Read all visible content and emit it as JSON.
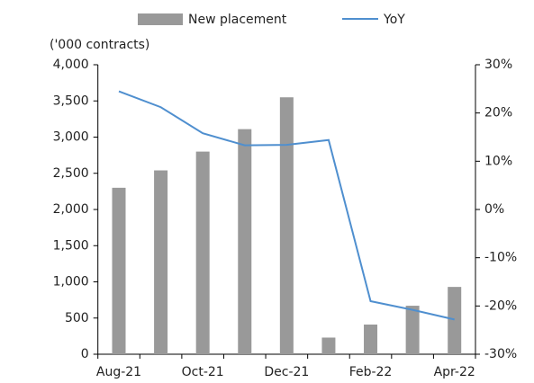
{
  "chart_data": {
    "type": "bar_line",
    "y_label": "('000 contracts)",
    "categories": [
      "Aug-21",
      null,
      "Oct-21",
      null,
      "Dec-21",
      null,
      "Feb-22",
      null,
      "Apr-22"
    ],
    "series": [
      {
        "name": "New placement",
        "type": "bar",
        "color": "#999999",
        "axis": "y",
        "values": [
          2300,
          2540,
          2800,
          3110,
          3550,
          230,
          410,
          670,
          930
        ]
      },
      {
        "name": "YoY",
        "type": "line",
        "color": "#4f8fcf",
        "axis": "y2",
        "values": [
          24.5,
          21.2,
          15.8,
          13.3,
          13.4,
          14.4,
          -19,
          -20.8,
          -22.8
        ]
      }
    ],
    "ylim": [
      0,
      4000
    ],
    "yticks": [
      0,
      500,
      {
        "value": 1000,
        "label": "1,000"
      },
      {
        "value": 1500,
        "label": "1,500"
      },
      {
        "value": 2000,
        "label": "2,000"
      },
      {
        "value": 2500,
        "label": "2,500"
      },
      {
        "value": 3000,
        "label": "3,000"
      },
      {
        "value": 3500,
        "label": "3,500"
      },
      {
        "value": 4000,
        "label": "4,000"
      }
    ],
    "y2lim": [
      -30,
      30
    ],
    "y2ticks": [
      {
        "value": -30,
        "label": "-30%"
      },
      {
        "value": -20,
        "label": "-20%"
      },
      {
        "value": -10,
        "label": "-10%"
      },
      {
        "value": 0,
        "label": "0%"
      },
      {
        "value": 10,
        "label": "10%"
      },
      {
        "value": 20,
        "label": "20%"
      },
      {
        "value": 30,
        "label": "30%"
      }
    ],
    "legend": "top"
  }
}
